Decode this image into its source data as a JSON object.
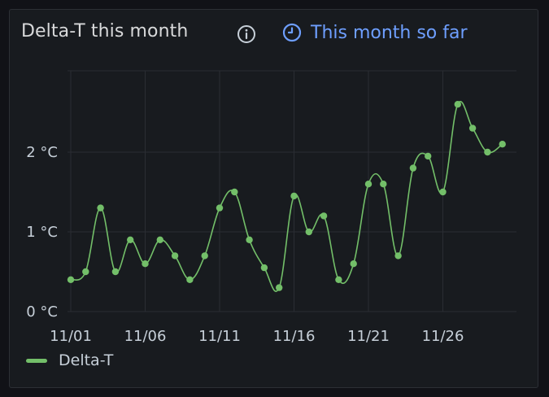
{
  "panel": {
    "title": "Delta-T this month",
    "info_icon": "info-circle-icon",
    "time_shift": {
      "icon": "clock-icon",
      "label": "This month so far",
      "color": "#6e9fff"
    }
  },
  "chart_data": {
    "type": "line",
    "title": "Delta-T this month",
    "x": [
      "11/01",
      "11/02",
      "11/03",
      "11/04",
      "11/05",
      "11/06",
      "11/07",
      "11/08",
      "11/09",
      "11/10",
      "11/11",
      "11/12",
      "11/13",
      "11/14",
      "11/15",
      "11/16",
      "11/17",
      "11/18",
      "11/19",
      "11/20",
      "11/21",
      "11/22",
      "11/23",
      "11/24",
      "11/25",
      "11/26",
      "11/27",
      "11/28",
      "11/29",
      "11/30"
    ],
    "x_tick_labels": [
      "11/01",
      "11/06",
      "11/11",
      "11/16",
      "11/21",
      "11/26"
    ],
    "series": [
      {
        "name": "Delta-T",
        "color": "#73bf69",
        "values": [
          0.4,
          0.5,
          1.3,
          0.5,
          0.9,
          0.6,
          0.9,
          0.7,
          0.4,
          0.7,
          1.3,
          1.5,
          0.9,
          0.55,
          0.3,
          1.45,
          1.0,
          1.2,
          0.4,
          0.6,
          1.6,
          1.6,
          0.7,
          1.8,
          1.95,
          1.5,
          2.6,
          2.3,
          2.0,
          2.1
        ]
      }
    ],
    "y_ticks": [
      {
        "value": 0,
        "label": "0 °C"
      },
      {
        "value": 1,
        "label": "1 °C"
      },
      {
        "value": 2,
        "label": "2 °C"
      }
    ],
    "ylim": [
      0,
      2.9
    ],
    "grid": true,
    "legend": "bottom-left",
    "xlabel": "",
    "ylabel": ""
  },
  "legend": {
    "label": "Delta-T",
    "color": "#73bf69"
  }
}
